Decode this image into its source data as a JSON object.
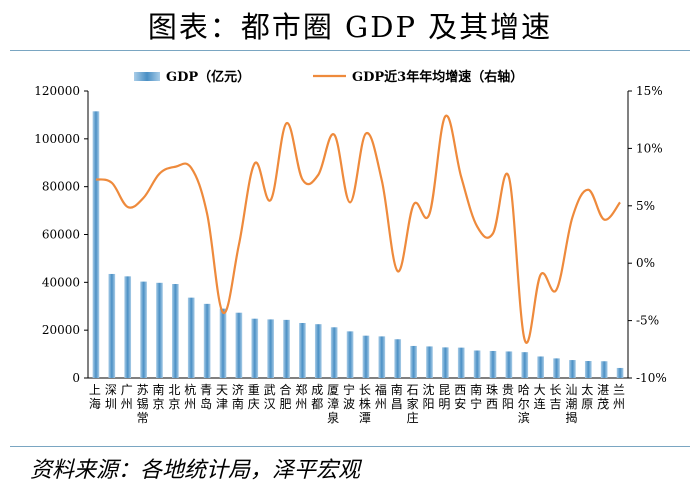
{
  "title": "图表：都市圈 GDP 及其增速",
  "source": "资料来源：各地统计局，泽平宏观",
  "colors": {
    "bar": "#4a8fc4",
    "bar_light": "#a9cde8",
    "line": "#ee8a3c"
  },
  "chart_data": {
    "type": "bar+line",
    "categories": [
      "上海",
      "深圳",
      "广州",
      "苏锡常",
      "南京",
      "北京",
      "杭州",
      "青岛",
      "天津",
      "济南",
      "重庆",
      "武汉",
      "合肥",
      "郑州",
      "成都",
      "厦漳泉",
      "宁波",
      "长株潭",
      "福州",
      "南昌",
      "石家庄",
      "沈阳",
      "昆明",
      "西安",
      "南宁",
      "珠西",
      "贵阳",
      "哈尔滨",
      "大连",
      "长吉",
      "汕潮揭",
      "太原",
      "湛茂",
      "兰州"
    ],
    "series": [
      {
        "name": "GDP（亿元）",
        "type": "bar",
        "axis": "left",
        "values": [
          111500,
          43500,
          42500,
          40300,
          39800,
          39300,
          33600,
          31000,
          29000,
          27300,
          24800,
          24500,
          24300,
          23000,
          22500,
          21200,
          19500,
          17700,
          17400,
          16200,
          13400,
          13200,
          12800,
          12700,
          11500,
          11300,
          11100,
          10800,
          9000,
          8200,
          7500,
          7100,
          7000,
          4200
        ]
      },
      {
        "name": "GDP近3年年均增速（右轴）",
        "type": "line",
        "axis": "right",
        "values": [
          7.3,
          7.0,
          4.9,
          5.7,
          7.8,
          8.4,
          8.3,
          4.3,
          -4.3,
          1.6,
          8.7,
          5.5,
          12.2,
          7.3,
          7.7,
          11.2,
          5.3,
          11.3,
          7.2,
          -0.7,
          5.1,
          4.3,
          12.8,
          7.5,
          3.2,
          2.6,
          7.5,
          -6.7,
          -1.0,
          -2.3,
          4.0,
          6.4,
          3.8,
          5.3
        ]
      }
    ],
    "y_left": {
      "min": 0,
      "max": 120000,
      "ticks": [
        "0",
        "20000",
        "40000",
        "60000",
        "80000",
        "100000",
        "120000"
      ]
    },
    "y_right": {
      "min": -10,
      "max": 15,
      "ticks": [
        "-10%",
        "-5%",
        "0%",
        "5%",
        "10%",
        "15%"
      ]
    },
    "legend_placement": "top",
    "grid": false
  }
}
